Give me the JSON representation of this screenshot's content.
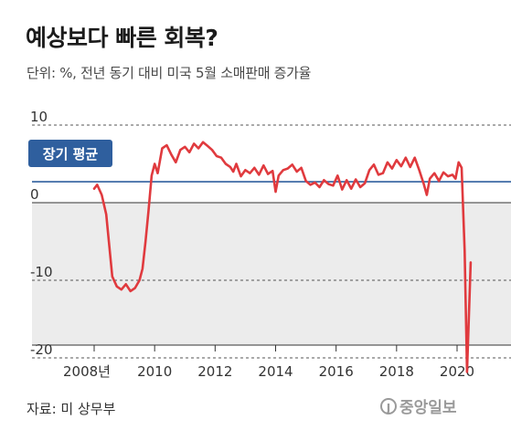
{
  "title": "예상보다 빠른 회복?",
  "subtitle": "단위: %, 전년 동기 대비 미국 5월 소매판매 증가율",
  "source": "자료: 미 상무부",
  "logo": {
    "text": "중앙일보",
    "mark": "J"
  },
  "colors": {
    "line": "#e03a3e",
    "avg": "#2f5f9e",
    "negative_bg": "#ececec"
  },
  "chart_data": {
    "type": "line",
    "title": "예상보다 빠른 회복?",
    "ylabel": "단위: %",
    "ylim": [
      -20,
      10
    ],
    "xlim": [
      2007.3,
      2020.9
    ],
    "yticks": [
      {
        "value": 10,
        "label": "10"
      },
      {
        "value": 0,
        "label": "0"
      },
      {
        "value": -10,
        "label": "-10"
      },
      {
        "value": -20,
        "label": "-20"
      }
    ],
    "xticks": [
      {
        "value": 2008,
        "label": "2008년"
      },
      {
        "value": 2010,
        "label": "2010"
      },
      {
        "value": 2012,
        "label": "2012"
      },
      {
        "value": 2014,
        "label": "2014"
      },
      {
        "value": 2016,
        "label": "2016"
      },
      {
        "value": 2018,
        "label": "2018"
      },
      {
        "value": 2020,
        "label": "2020"
      }
    ],
    "reference_line": {
      "label": "장기 평균",
      "value": 2.7
    },
    "series": [
      {
        "points": [
          [
            2008.0,
            1.8
          ],
          [
            2008.1,
            2.3
          ],
          [
            2008.25,
            1.0
          ],
          [
            2008.4,
            -1.5
          ],
          [
            2008.5,
            -5.5
          ],
          [
            2008.6,
            -9.5
          ],
          [
            2008.75,
            -10.8
          ],
          [
            2008.9,
            -11.2
          ],
          [
            2009.05,
            -10.5
          ],
          [
            2009.2,
            -11.4
          ],
          [
            2009.35,
            -11.0
          ],
          [
            2009.5,
            -10.0
          ],
          [
            2009.6,
            -8.5
          ],
          [
            2009.7,
            -5.0
          ],
          [
            2009.8,
            -1.0
          ],
          [
            2009.9,
            3.5
          ],
          [
            2010.0,
            5.0
          ],
          [
            2010.1,
            3.8
          ],
          [
            2010.25,
            7.0
          ],
          [
            2010.4,
            7.4
          ],
          [
            2010.55,
            6.2
          ],
          [
            2010.7,
            5.2
          ],
          [
            2010.85,
            6.8
          ],
          [
            2011.0,
            7.2
          ],
          [
            2011.15,
            6.5
          ],
          [
            2011.3,
            7.6
          ],
          [
            2011.45,
            7.0
          ],
          [
            2011.6,
            7.8
          ],
          [
            2011.75,
            7.3
          ],
          [
            2011.9,
            6.8
          ],
          [
            2012.05,
            6.0
          ],
          [
            2012.2,
            5.8
          ],
          [
            2012.35,
            5.0
          ],
          [
            2012.5,
            4.6
          ],
          [
            2012.6,
            4.0
          ],
          [
            2012.7,
            5.0
          ],
          [
            2012.85,
            3.4
          ],
          [
            2013.0,
            4.2
          ],
          [
            2013.15,
            3.8
          ],
          [
            2013.3,
            4.5
          ],
          [
            2013.45,
            3.6
          ],
          [
            2013.6,
            4.8
          ],
          [
            2013.75,
            3.7
          ],
          [
            2013.9,
            4.1
          ],
          [
            2014.0,
            1.4
          ],
          [
            2014.1,
            3.5
          ],
          [
            2014.25,
            4.2
          ],
          [
            2014.4,
            4.4
          ],
          [
            2014.55,
            4.9
          ],
          [
            2014.7,
            4.0
          ],
          [
            2014.85,
            4.5
          ],
          [
            2015.0,
            2.8
          ],
          [
            2015.15,
            2.3
          ],
          [
            2015.3,
            2.6
          ],
          [
            2015.45,
            2.0
          ],
          [
            2015.6,
            2.9
          ],
          [
            2015.75,
            2.4
          ],
          [
            2015.9,
            2.2
          ],
          [
            2016.05,
            3.5
          ],
          [
            2016.2,
            1.7
          ],
          [
            2016.35,
            2.9
          ],
          [
            2016.5,
            1.8
          ],
          [
            2016.65,
            3.0
          ],
          [
            2016.8,
            2.0
          ],
          [
            2016.95,
            2.5
          ],
          [
            2017.1,
            4.2
          ],
          [
            2017.25,
            4.9
          ],
          [
            2017.4,
            3.6
          ],
          [
            2017.55,
            3.8
          ],
          [
            2017.7,
            5.2
          ],
          [
            2017.85,
            4.4
          ],
          [
            2018.0,
            5.5
          ],
          [
            2018.15,
            4.7
          ],
          [
            2018.3,
            5.8
          ],
          [
            2018.45,
            4.6
          ],
          [
            2018.6,
            5.8
          ],
          [
            2018.75,
            4.2
          ],
          [
            2018.9,
            2.4
          ],
          [
            2019.0,
            1.0
          ],
          [
            2019.1,
            3.1
          ],
          [
            2019.25,
            3.8
          ],
          [
            2019.4,
            2.8
          ],
          [
            2019.55,
            3.9
          ],
          [
            2019.7,
            3.4
          ],
          [
            2019.85,
            3.6
          ],
          [
            2019.95,
            3.1
          ],
          [
            2020.05,
            5.2
          ],
          [
            2020.15,
            4.5
          ],
          [
            2020.25,
            -6.2
          ],
          [
            2020.33,
            -21.8
          ],
          [
            2020.45,
            -7.7
          ]
        ]
      }
    ]
  }
}
